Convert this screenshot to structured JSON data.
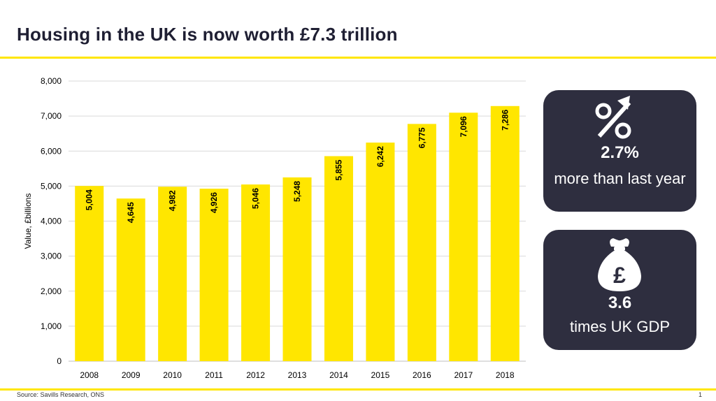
{
  "page": {
    "title": "Housing in the UK is now worth £7.3 trillion",
    "source": "Source: Savills Research, ONS",
    "page_number": "1"
  },
  "colors": {
    "accent": "#ffe600",
    "card_bg": "#2e2e3f",
    "title": "#1f1f33",
    "grid": "#d9d9d9"
  },
  "chart_data": {
    "type": "bar",
    "title": "",
    "xlabel": "",
    "ylabel": "Value, £billions",
    "categories": [
      "2008",
      "2009",
      "2010",
      "2011",
      "2012",
      "2013",
      "2014",
      "2015",
      "2016",
      "2017",
      "2018"
    ],
    "values": [
      5004,
      4645,
      4982,
      4926,
      5046,
      5248,
      5855,
      6242,
      6775,
      7096,
      7286
    ],
    "data_labels": [
      "5,004",
      "4,645",
      "4,982",
      "4,926",
      "5,046",
      "5,248",
      "5,855",
      "6,242",
      "6,775",
      "7,096",
      "7,286"
    ],
    "ylim": [
      0,
      8000
    ],
    "yticks": [
      0,
      1000,
      2000,
      3000,
      4000,
      5000,
      6000,
      7000,
      8000
    ],
    "ytick_labels": [
      "0",
      "1,000",
      "2,000",
      "3,000",
      "4,000",
      "5,000",
      "6,000",
      "7,000",
      "8,000"
    ],
    "grid": true,
    "legend": "none",
    "bar_color": "#ffe600"
  },
  "cards": [
    {
      "icon": "percent-up-arrow-icon",
      "value": "2.7%",
      "text": "more than last year"
    },
    {
      "icon": "money-bag-pound-icon",
      "value": "3.6",
      "text": "times UK GDP"
    }
  ]
}
